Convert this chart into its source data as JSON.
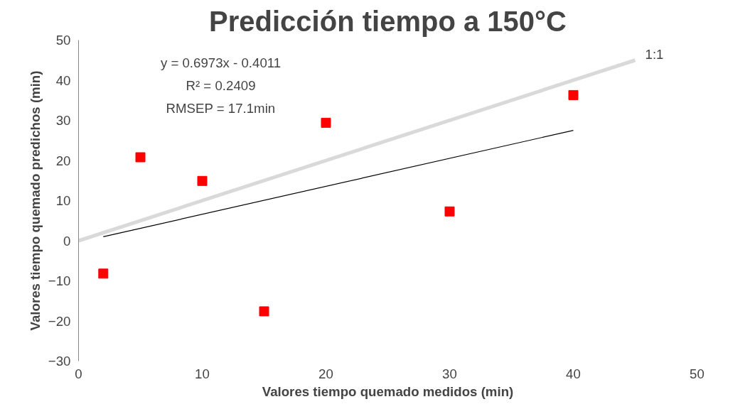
{
  "chart_data": {
    "type": "scatter",
    "title": "Predicción tiempo a 150°C",
    "xlabel": "Valores tiempo quemado medidos (min)",
    "ylabel": "Valores tiempo quemado predichos (min)",
    "series": [
      {
        "type": "scatter",
        "color": "#ff0000",
        "marker": "square",
        "x": [
          2,
          5,
          10,
          15,
          20,
          30,
          40
        ],
        "values": [
          -8.2,
          20.8,
          14.9,
          -17.6,
          29.4,
          7.3,
          36.3
        ]
      },
      {
        "type": "line",
        "color": "#000000",
        "x": [
          2,
          40
        ],
        "values": [
          1.0,
          27.5
        ]
      },
      {
        "type": "line",
        "name": "1:1",
        "color": "#d9d9d9",
        "x": [
          0,
          45
        ],
        "values": [
          0,
          45
        ]
      }
    ],
    "annotations": [
      "y = 0.6973x - 0.4011",
      "R² = 0.2409",
      "RMSEP = 17.1min"
    ],
    "xlim": [
      0,
      50
    ],
    "xticks": [
      0,
      10,
      20,
      30,
      40,
      50
    ],
    "ylim": [
      -30,
      50
    ],
    "yticks": [
      -30,
      -20,
      -10,
      0,
      10,
      20,
      30,
      40,
      50
    ],
    "grid": false
  }
}
